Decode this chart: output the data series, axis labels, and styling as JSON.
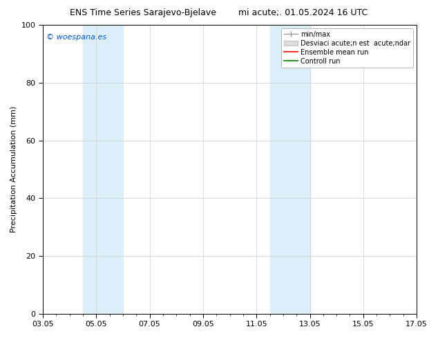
{
  "title_left": "ENS Time Series Sarajevo-Bjelave",
  "title_right": "mi acute;. 01.05.2024 16 UTC",
  "ylabel": "Precipitation Accumulation (mm)",
  "ylim": [
    0,
    100
  ],
  "xlim": [
    0,
    14
  ],
  "xtick_positions": [
    0,
    2,
    4,
    6,
    8,
    10,
    12,
    14
  ],
  "xtick_labels": [
    "03.05",
    "05.05",
    "07.05",
    "09.05",
    "11.05",
    "13.05",
    "15.05",
    "17.05"
  ],
  "ytick_positions": [
    0,
    20,
    40,
    60,
    80,
    100
  ],
  "ytick_labels": [
    "0",
    "20",
    "40",
    "60",
    "80",
    "100"
  ],
  "shaded_regions": [
    {
      "xmin": 1.5,
      "xmax": 3.0,
      "color": "#ddeef8"
    },
    {
      "xmin": 8.5,
      "xmax": 10.0,
      "color": "#ddeef8"
    }
  ],
  "watermark_text": "© woespana.es",
  "legend_label_minmax": "min/max",
  "legend_label_desv": "Desviaci acute;n est  acute;ndar",
  "legend_label_ens": "Ensemble mean run",
  "legend_label_ctrl": "Controll run",
  "background_color": "#ffffff",
  "grid_color": "#cccccc",
  "title_fontsize": 9,
  "axis_fontsize": 8,
  "tick_fontsize": 8,
  "legend_fontsize": 7,
  "watermark_color": "#0055cc",
  "watermark_fontsize": 8
}
